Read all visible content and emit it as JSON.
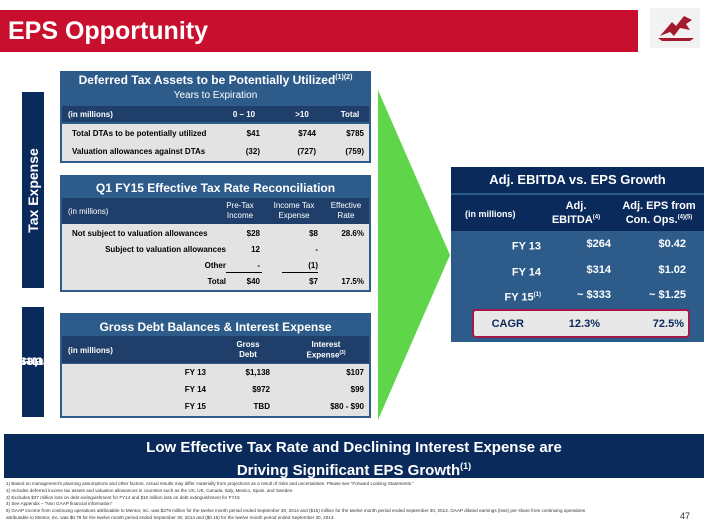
{
  "header": {
    "title": "EPS Opportunity"
  },
  "sections": {
    "tax_label": "Tax Expense",
    "interest_label_1": "Interest",
    "interest_label_2": "Expense"
  },
  "dta": {
    "title": "Deferred Tax Assets to be Potentially Utilized",
    "title_sup": "(1)(2)",
    "subtitle": "Years to Expiration",
    "headers": [
      "(in millions)",
      "0 – 10",
      ">10",
      "Total"
    ],
    "rows": [
      [
        "Total DTAs to be potentially utilized",
        "$41",
        "$744",
        "$785"
      ],
      [
        "Valuation allowances against DTAs",
        "(32)",
        "(727)",
        "(759)"
      ]
    ]
  },
  "etr": {
    "title": "Q1 FY15 Effective Tax Rate Reconciliation",
    "headers": [
      "(in millions)",
      "Pre-Tax",
      "Income",
      "Income Tax",
      "Expense",
      "Effective",
      "Rate"
    ],
    "rows": [
      [
        "Not subject to valuation allowances",
        "$28",
        "$8",
        "28.6%"
      ],
      [
        "Subject to valuation allowances",
        "12",
        "-",
        ""
      ],
      [
        "Other",
        "-",
        "(1)",
        ""
      ],
      [
        "Total",
        "$40",
        "$7",
        "17.5%"
      ]
    ]
  },
  "debt": {
    "title": "Gross Debt Balances & Interest Expense",
    "headers": [
      "(in millions)",
      "Gross",
      "Debt",
      "Interest",
      "Expense",
      "(3)"
    ],
    "rows": [
      [
        "FY 13",
        "$1,138",
        "$107"
      ],
      [
        "FY 14",
        "$972",
        "$99"
      ],
      [
        "FY 15",
        "TBD",
        "$80 - $90"
      ]
    ]
  },
  "ebitda": {
    "title": "Adj. EBITDA vs. EPS Growth",
    "headers": [
      "(in millions)",
      "Adj.",
      "EBITDA",
      "(4)",
      "Adj. EPS from",
      "Con. Ops.",
      "(4)(5)"
    ],
    "rows": [
      [
        "FY 13",
        "",
        "$264",
        "$0.42"
      ],
      [
        "FY 14",
        "",
        "$314",
        "$1.02"
      ],
      [
        "FY 15",
        "(1)",
        "~ $333",
        "~ $1.25"
      ]
    ],
    "cagr": [
      "CAGR",
      "12.3%",
      "72.5%"
    ]
  },
  "banner": {
    "line1": "Low Effective Tax Rate and Declining Interest Expense are",
    "line2": "Driving Significant EPS Growth",
    "sup": "(1)"
  },
  "footnotes": [
    "1)   Based on management’s planning assumptions and other factors. Actual results may differ materially from projections as a result of risks and uncertainties. Please see “Forward Looking Statements.”",
    "2)   Includes deferred income tax assets and valuation allowances in countries such as the US, UK, Canada, Italy, Mexico, Spain, and Sweden",
    "3)   Excludes $37 million loss on debt extinguishment for FY14 and $10 million loss on debt extinguishment for FY15",
    "4)   See Appendix – “Non GAAP financial information”",
    "5)   GAAP income from continuing operations attributable to Mentor, Inc. was $279 million for the twelve month period ended September 30, 2014 and ($15) million for the twelve month period ended September 30, 2013. GAAP diluted earnings (loss) per share from continuing operations",
    "      attributable to Mentor, Inc. was $0.78 for the twelve month period ended September 30, 2014 and ($0.15) for the twelve month period ended September 30, 2013."
  ],
  "page_number": "47",
  "colors": {
    "brand_red": "#c8102e",
    "navy": "#0a2a5c",
    "panel_blue": "#2e5c8a",
    "arrow_green": "#5fd64a"
  }
}
